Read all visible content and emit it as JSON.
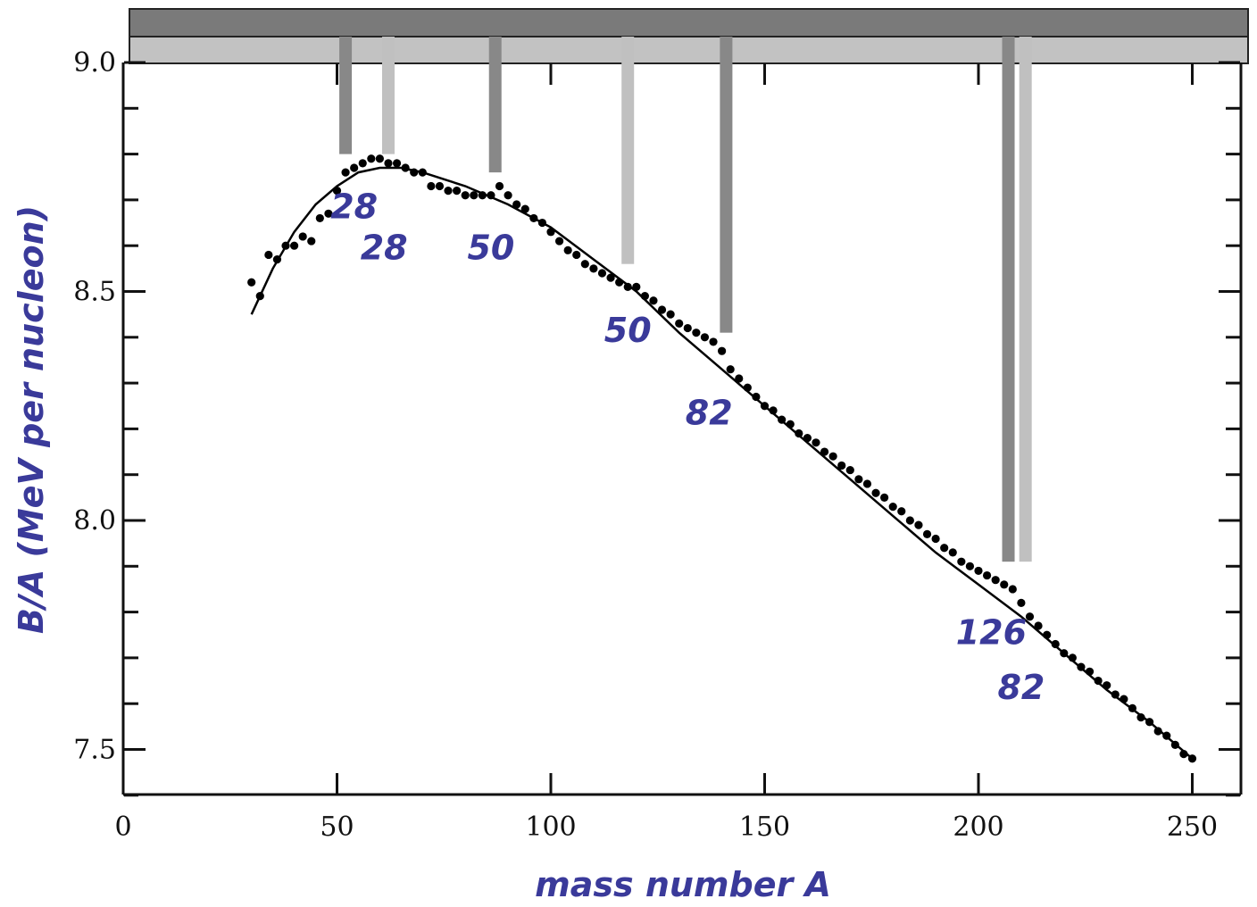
{
  "chart_data": {
    "type": "scatter",
    "title": "",
    "xlabel": "mass number A",
    "ylabel": "B/A (MeV per nucleon)",
    "xlim": [
      0,
      262
    ],
    "ylim": [
      7.4,
      9.0
    ],
    "x_ticks": [
      0,
      50,
      100,
      150,
      200,
      250
    ],
    "y_ticks": [
      7.5,
      8.0,
      8.5,
      9.0
    ],
    "x_tick_labels": [
      "0",
      "50",
      "100",
      "150",
      "200",
      "250"
    ],
    "y_tick_labels": [
      "7.5",
      "8.0",
      "8.5",
      "9.0"
    ],
    "grid": false,
    "legend": "none",
    "colors": {
      "label": "#3a3a9a",
      "neutron_bar": "#888888",
      "proton_bar": "#c0c0c0",
      "band_dark": "#7a7a7a",
      "band_light": "#c2c2c2",
      "data": "#000000"
    },
    "series": [
      {
        "type": "scatter",
        "points": [
          [
            30,
            8.52
          ],
          [
            32,
            8.49
          ],
          [
            34,
            8.58
          ],
          [
            36,
            8.57
          ],
          [
            38,
            8.6
          ],
          [
            40,
            8.6
          ],
          [
            42,
            8.62
          ],
          [
            44,
            8.61
          ],
          [
            46,
            8.66
          ],
          [
            48,
            8.67
          ],
          [
            50,
            8.72
          ],
          [
            52,
            8.76
          ],
          [
            54,
            8.77
          ],
          [
            56,
            8.78
          ],
          [
            58,
            8.79
          ],
          [
            60,
            8.79
          ],
          [
            62,
            8.78
          ],
          [
            64,
            8.78
          ],
          [
            66,
            8.77
          ],
          [
            68,
            8.76
          ],
          [
            70,
            8.76
          ],
          [
            72,
            8.73
          ],
          [
            74,
            8.73
          ],
          [
            76,
            8.72
          ],
          [
            78,
            8.72
          ],
          [
            80,
            8.71
          ],
          [
            82,
            8.71
          ],
          [
            84,
            8.71
          ],
          [
            86,
            8.71
          ],
          [
            88,
            8.73
          ],
          [
            90,
            8.71
          ],
          [
            92,
            8.69
          ],
          [
            94,
            8.68
          ],
          [
            96,
            8.66
          ],
          [
            98,
            8.65
          ],
          [
            100,
            8.63
          ],
          [
            102,
            8.61
          ],
          [
            104,
            8.59
          ],
          [
            106,
            8.58
          ],
          [
            108,
            8.56
          ],
          [
            110,
            8.55
          ],
          [
            112,
            8.54
          ],
          [
            114,
            8.53
          ],
          [
            116,
            8.52
          ],
          [
            118,
            8.51
          ],
          [
            120,
            8.51
          ],
          [
            122,
            8.49
          ],
          [
            124,
            8.48
          ],
          [
            126,
            8.46
          ],
          [
            128,
            8.45
          ],
          [
            130,
            8.43
          ],
          [
            132,
            8.42
          ],
          [
            134,
            8.41
          ],
          [
            136,
            8.4
          ],
          [
            138,
            8.39
          ],
          [
            140,
            8.37
          ],
          [
            142,
            8.33
          ],
          [
            144,
            8.31
          ],
          [
            146,
            8.29
          ],
          [
            148,
            8.27
          ],
          [
            150,
            8.25
          ],
          [
            152,
            8.24
          ],
          [
            154,
            8.22
          ],
          [
            156,
            8.21
          ],
          [
            158,
            8.19
          ],
          [
            160,
            8.18
          ],
          [
            162,
            8.17
          ],
          [
            164,
            8.15
          ],
          [
            166,
            8.14
          ],
          [
            168,
            8.12
          ],
          [
            170,
            8.11
          ],
          [
            172,
            8.09
          ],
          [
            174,
            8.08
          ],
          [
            176,
            8.06
          ],
          [
            178,
            8.05
          ],
          [
            180,
            8.03
          ],
          [
            182,
            8.02
          ],
          [
            184,
            8.0
          ],
          [
            186,
            7.99
          ],
          [
            188,
            7.97
          ],
          [
            190,
            7.96
          ],
          [
            192,
            7.94
          ],
          [
            194,
            7.93
          ],
          [
            196,
            7.91
          ],
          [
            198,
            7.9
          ],
          [
            200,
            7.89
          ],
          [
            202,
            7.88
          ],
          [
            204,
            7.87
          ],
          [
            206,
            7.86
          ],
          [
            208,
            7.85
          ],
          [
            210,
            7.82
          ],
          [
            212,
            7.79
          ],
          [
            214,
            7.77
          ],
          [
            216,
            7.75
          ],
          [
            218,
            7.73
          ],
          [
            220,
            7.71
          ],
          [
            222,
            7.7
          ],
          [
            224,
            7.68
          ],
          [
            226,
            7.67
          ],
          [
            228,
            7.65
          ],
          [
            230,
            7.64
          ],
          [
            232,
            7.62
          ],
          [
            234,
            7.61
          ],
          [
            236,
            7.59
          ],
          [
            238,
            7.57
          ],
          [
            240,
            7.56
          ],
          [
            242,
            7.54
          ],
          [
            244,
            7.53
          ],
          [
            246,
            7.51
          ],
          [
            248,
            7.49
          ],
          [
            250,
            7.48
          ]
        ]
      },
      {
        "type": "line",
        "points": [
          [
            30,
            8.45
          ],
          [
            35,
            8.55
          ],
          [
            40,
            8.63
          ],
          [
            45,
            8.69
          ],
          [
            50,
            8.73
          ],
          [
            55,
            8.76
          ],
          [
            60,
            8.77
          ],
          [
            65,
            8.77
          ],
          [
            70,
            8.76
          ],
          [
            80,
            8.73
          ],
          [
            90,
            8.69
          ],
          [
            100,
            8.64
          ],
          [
            110,
            8.57
          ],
          [
            120,
            8.5
          ],
          [
            130,
            8.41
          ],
          [
            140,
            8.33
          ],
          [
            150,
            8.25
          ],
          [
            160,
            8.17
          ],
          [
            170,
            8.09
          ],
          [
            180,
            8.01
          ],
          [
            190,
            7.93
          ],
          [
            200,
            7.86
          ],
          [
            210,
            7.79
          ],
          [
            220,
            7.71
          ],
          [
            230,
            7.63
          ],
          [
            240,
            7.56
          ],
          [
            250,
            7.48
          ]
        ]
      }
    ],
    "magic_bars": [
      {
        "x": 52,
        "y_end": 8.8,
        "kind": "neutron"
      },
      {
        "x": 62,
        "y_end": 8.8,
        "kind": "proton"
      },
      {
        "x": 87,
        "y_end": 8.76,
        "kind": "neutron"
      },
      {
        "x": 118,
        "y_end": 8.56,
        "kind": "proton"
      },
      {
        "x": 141,
        "y_end": 8.41,
        "kind": "neutron"
      },
      {
        "x": 207,
        "y_end": 7.91,
        "kind": "neutron"
      },
      {
        "x": 211,
        "y_end": 7.91,
        "kind": "proton"
      }
    ],
    "annotations": [
      {
        "text": "28",
        "x": 54,
        "y": 8.66
      },
      {
        "text": "28",
        "x": 61,
        "y": 8.57
      },
      {
        "text": "50",
        "x": 86,
        "y": 8.57
      },
      {
        "text": "50",
        "x": 118,
        "y": 8.39
      },
      {
        "text": "82",
        "x": 137,
        "y": 8.21
      },
      {
        "text": "126",
        "x": 203,
        "y": 7.73
      },
      {
        "text": "82",
        "x": 210,
        "y": 7.61
      }
    ]
  }
}
